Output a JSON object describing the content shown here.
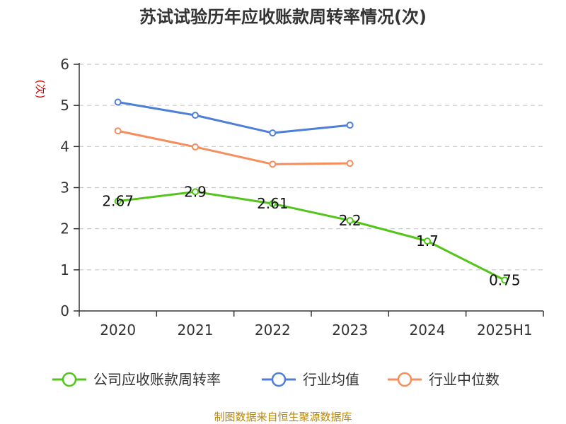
{
  "chart_data": {
    "type": "line",
    "title": "苏试试验历年应收账款周转率情况(次)",
    "ylabel": "(次)",
    "categories": [
      "2020",
      "2021",
      "2022",
      "2023",
      "2024",
      "2025H1"
    ],
    "ylim": [
      0,
      6
    ],
    "yticks": [
      "0",
      "1",
      "2",
      "3",
      "4",
      "5",
      "6"
    ],
    "grid": true,
    "legend_position": "bottom",
    "series": [
      {
        "name": "公司应收账款周转率",
        "color": "#52c41a",
        "values": [
          2.67,
          2.9,
          2.61,
          2.2,
          1.7,
          0.75
        ],
        "labels": [
          "2.67",
          "2.9",
          "2.61",
          "2.2",
          "1.7",
          "0.75"
        ]
      },
      {
        "name": "行业均值",
        "color": "#4e7fd8",
        "values": [
          5.08,
          4.76,
          4.33,
          4.52,
          null,
          null
        ]
      },
      {
        "name": "行业中位数",
        "color": "#f68d5c",
        "values": [
          4.38,
          3.99,
          3.57,
          3.59,
          null,
          null
        ]
      }
    ],
    "source": "制图数据来自恒生聚源数据库"
  }
}
